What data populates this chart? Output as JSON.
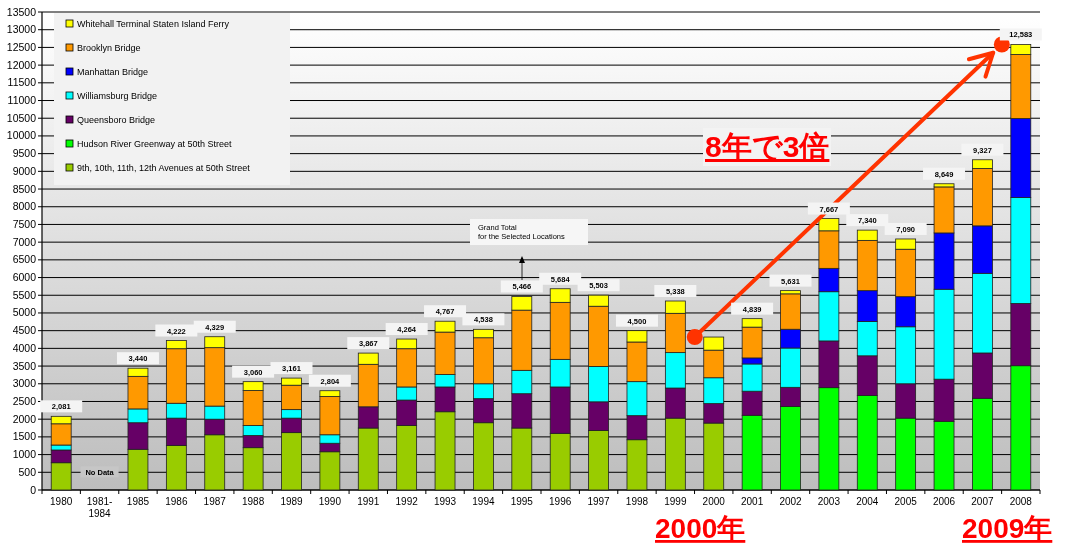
{
  "chart_data": {
    "type": "bar",
    "stacked": true,
    "categories": [
      "1980",
      "1981-\n1984",
      "1985",
      "1986",
      "1987",
      "1988",
      "1989",
      "1990",
      "1991",
      "1992",
      "1993",
      "1994",
      "1995",
      "1996",
      "1997",
      "1998",
      "1999",
      "2000",
      "2001",
      "2002",
      "2003",
      "2004",
      "2005",
      "2006",
      "2007",
      "2008"
    ],
    "series": [
      {
        "name": "9th, 10th, 11th, 12th Avenues at 50th Street",
        "color": "#99cc00",
        "values": [
          770,
          null,
          1150,
          1260,
          1560,
          1195,
          1620,
          1080,
          1750,
          1820,
          2210,
          1900,
          1750,
          1600,
          1680,
          1420,
          2030,
          1890,
          null,
          null,
          null,
          null,
          null,
          null,
          null,
          null
        ]
      },
      {
        "name": "Hudson River Greenway at 50th Street",
        "color": "#00ff00",
        "values": [
          null,
          null,
          null,
          null,
          null,
          null,
          null,
          null,
          null,
          null,
          null,
          null,
          null,
          null,
          null,
          null,
          null,
          null,
          2110,
          2360,
          2890,
          2670,
          2030,
          1940,
          2590,
          3510
        ]
      },
      {
        "name": "Queensboro Bridge",
        "color": "#660066",
        "values": [
          360,
          null,
          750,
          770,
          440,
          345,
          410,
          240,
          600,
          720,
          700,
          680,
          970,
          1310,
          810,
          680,
          850,
          550,
          680,
          540,
          1320,
          1120,
          970,
          1190,
          1280,
          1760
        ]
      },
      {
        "name": "Williamsburg Bridge",
        "color": "#00ffff",
        "values": [
          140,
          null,
          390,
          420,
          370,
          280,
          240,
          240,
          0,
          370,
          350,
          420,
          660,
          780,
          1000,
          960,
          1000,
          730,
          770,
          1110,
          1390,
          970,
          1610,
          2540,
          2250,
          2990
        ]
      },
      {
        "name": "Manhattan Bridge",
        "color": "#0000ff",
        "values": [
          0,
          null,
          0,
          0,
          0,
          0,
          0,
          0,
          0,
          0,
          0,
          0,
          0,
          0,
          0,
          0,
          0,
          0,
          170,
          530,
          660,
          870,
          850,
          1590,
          1340,
          2230
        ]
      },
      {
        "name": "Brooklyn Bridge",
        "color": "#ff9900",
        "values": [
          600,
          null,
          920,
          1540,
          1650,
          990,
          690,
          1080,
          1200,
          1080,
          1200,
          1300,
          1700,
          1610,
          1700,
          1120,
          1110,
          780,
          870,
          1000,
          1060,
          1420,
          1340,
          1300,
          1620,
          1810
        ]
      },
      {
        "name": "Whitehall Terminal Staten Island Ferry",
        "color": "#ffff00",
        "values": [
          211,
          null,
          230,
          232,
          309,
          250,
          201,
          164,
          317,
          274,
          307,
          238,
          386,
          384,
          313,
          320,
          348,
          370,
          239,
          91,
          347,
          290,
          290,
          89,
          247,
          283
        ]
      }
    ],
    "totals": [
      "2,081",
      null,
      "3,440",
      "4,222",
      "4,329",
      "3,060",
      "3,161",
      "2,804",
      "3,867",
      "4,264",
      "4,767",
      "4,538",
      "5,466",
      "5,684",
      "5,503",
      "4,500",
      "5,338",
      null,
      "4,839",
      "5,631",
      "7,667",
      "7,340",
      "7,090",
      "8,649",
      "9,327",
      "12,583"
    ],
    "ylim": [
      0,
      13500
    ],
    "yticks": [
      0,
      500,
      1000,
      1500,
      2000,
      2500,
      3000,
      3500,
      4000,
      4500,
      5000,
      5500,
      6000,
      6500,
      7000,
      7500,
      8000,
      8500,
      9000,
      9500,
      10000,
      10500,
      11000,
      11500,
      12000,
      12500,
      13000,
      13500
    ],
    "grid": "y",
    "legend": "top left",
    "annotations": [
      "No Data",
      "Grand Total\nfor the  Selected Locations",
      "8年で3倍",
      "2000年",
      "2009年"
    ]
  }
}
